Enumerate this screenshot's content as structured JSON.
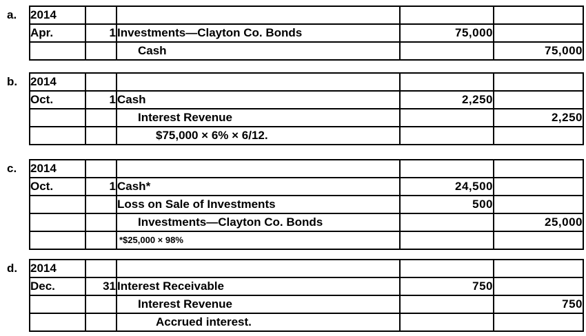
{
  "colors": {
    "background": "#ffffff",
    "border": "#000000",
    "text": "#000000"
  },
  "entries": [
    {
      "label": "a.",
      "rows": [
        {
          "month": "2014",
          "day": "",
          "account": "",
          "indent": 0,
          "debit": "",
          "credit": ""
        },
        {
          "month": "Apr.",
          "day": "1",
          "account": "Investments—Clayton Co. Bonds",
          "indent": 0,
          "debit": "75,000",
          "credit": ""
        },
        {
          "month": "",
          "day": "",
          "account": "Cash",
          "indent": 1,
          "debit": "",
          "credit": "75,000"
        }
      ]
    },
    {
      "label": "b.",
      "rows": [
        {
          "month": "2014",
          "day": "",
          "account": "",
          "indent": 0,
          "debit": "",
          "credit": ""
        },
        {
          "month": "Oct.",
          "day": "1",
          "account": "Cash",
          "indent": 0,
          "debit": "2,250",
          "credit": ""
        },
        {
          "month": "",
          "day": "",
          "account": "Interest Revenue",
          "indent": 1,
          "debit": "",
          "credit": "2,250"
        },
        {
          "month": "",
          "day": "",
          "account": "$75,000 × 6% × 6/12.",
          "indent": 2,
          "debit": "",
          "credit": ""
        }
      ]
    },
    {
      "label": "c.",
      "rows": [
        {
          "month": "2014",
          "day": "",
          "account": "",
          "indent": 0,
          "debit": "",
          "credit": ""
        },
        {
          "month": "Oct.",
          "day": "1",
          "account": "Cash*",
          "indent": 0,
          "debit": "24,500",
          "credit": ""
        },
        {
          "month": "",
          "day": "",
          "account": "Loss on Sale of Investments",
          "indent": 0,
          "debit": "500",
          "credit": ""
        },
        {
          "month": "",
          "day": "",
          "account": "Investments—Clayton Co. Bonds",
          "indent": 1,
          "debit": "",
          "credit": "25,000"
        },
        {
          "month": "",
          "day": "",
          "account": "*$25,000 × 98%",
          "indent": 0,
          "note": true,
          "debit": "",
          "credit": ""
        }
      ]
    },
    {
      "label": "d.",
      "rows": [
        {
          "month": "2014",
          "day": "",
          "account": "",
          "indent": 0,
          "debit": "",
          "credit": ""
        },
        {
          "month": "Dec.",
          "day": "31",
          "account": "Interest Receivable",
          "indent": 0,
          "debit": "750",
          "credit": ""
        },
        {
          "month": "",
          "day": "",
          "account": "Interest Revenue",
          "indent": 1,
          "debit": "",
          "credit": "750"
        },
        {
          "month": "",
          "day": "",
          "account": "Accrued interest.",
          "indent": 2,
          "debit": "",
          "credit": ""
        }
      ]
    }
  ]
}
